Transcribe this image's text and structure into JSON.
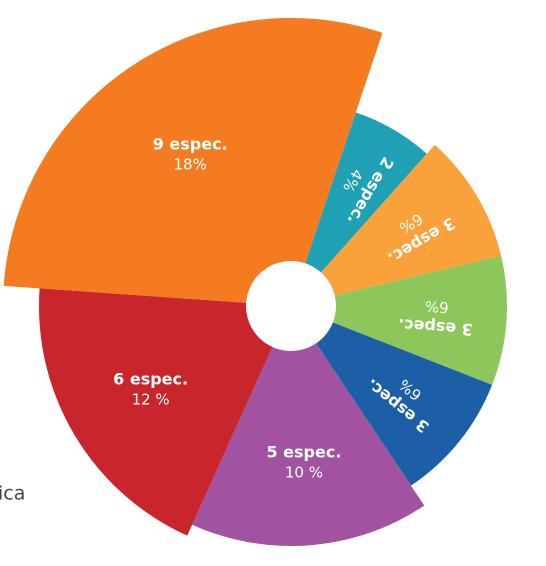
{
  "background_text": "ica",
  "chart_data": {
    "type": "pie",
    "categories": [
      "9 espec.",
      "2 espec.",
      "3 espec.",
      "3 espec.",
      "3 espec.",
      "5 espec.",
      "6 espec."
    ],
    "values": [
      18,
      4,
      6,
      6,
      6,
      10,
      12
    ],
    "value_labels": [
      "18%",
      "4%",
      "6%",
      "6%",
      "6%",
      "10 %",
      "12 %"
    ],
    "colors": [
      "#f47b20",
      "#1fa0b5",
      "#f9a13a",
      "#8dc65a",
      "#1d5fa6",
      "#a152a0",
      "#c8252c"
    ]
  }
}
